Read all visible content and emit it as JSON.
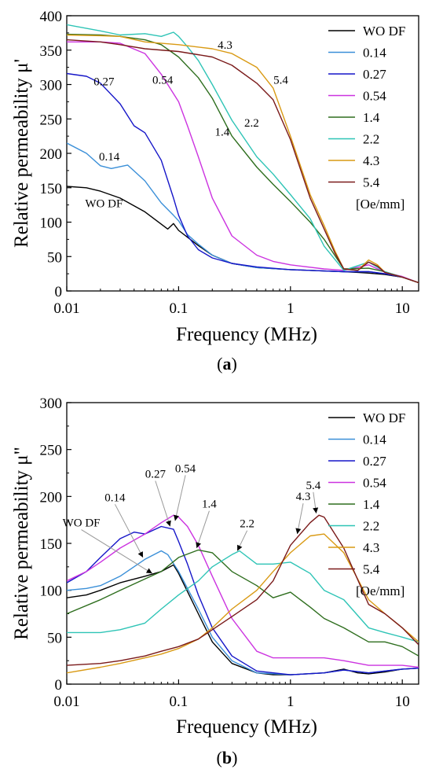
{
  "colors": {
    "WO DF": "#000000",
    "0.14": "#3a8fd8",
    "0.27": "#1515c8",
    "0.54": "#cc33e0",
    "1.4": "#2e6e1e",
    "2.2": "#2ec4b6",
    "4.3": "#d99a14",
    "5.4": "#7a1a1a",
    "annot_line": "#999999"
  },
  "chart_data": [
    {
      "type": "line",
      "panel_label": "a",
      "xlabel": "Frequency (MHz)",
      "ylabel": "Relative permeability μ'",
      "xscale": "log",
      "xlim": [
        0.01,
        14
      ],
      "ylim": [
        0,
        400
      ],
      "xticks": [
        0.01,
        0.1,
        1,
        10
      ],
      "xtick_labels": [
        "0.01",
        "0.1",
        "1",
        "10"
      ],
      "yticks": [
        0,
        50,
        100,
        150,
        200,
        250,
        300,
        350,
        400
      ],
      "legend": {
        "placement": "top-right",
        "unit_note": "[Oe/mm]"
      },
      "series": [
        {
          "name": "WO DF",
          "x": [
            0.01,
            0.015,
            0.02,
            0.03,
            0.05,
            0.07,
            0.08,
            0.09,
            0.1,
            0.15,
            0.2,
            0.3,
            0.5,
            1,
            2,
            3,
            4,
            5,
            7,
            10,
            14
          ],
          "y": [
            152,
            150,
            145,
            135,
            115,
            97,
            90,
            98,
            88,
            66,
            52,
            40,
            34,
            31,
            29,
            28,
            27,
            26,
            24,
            20,
            12
          ]
        },
        {
          "name": "0.14",
          "x": [
            0.01,
            0.015,
            0.02,
            0.025,
            0.035,
            0.05,
            0.07,
            0.09,
            0.1,
            0.12,
            0.15,
            0.2,
            0.3,
            0.5,
            1,
            2,
            3,
            5,
            7,
            10,
            14
          ],
          "y": [
            215,
            200,
            182,
            178,
            183,
            160,
            128,
            110,
            102,
            82,
            68,
            52,
            40,
            34,
            31,
            29,
            28,
            28,
            25,
            20,
            12
          ]
        },
        {
          "name": "0.27",
          "x": [
            0.01,
            0.015,
            0.02,
            0.03,
            0.04,
            0.05,
            0.07,
            0.09,
            0.1,
            0.12,
            0.15,
            0.2,
            0.3,
            0.5,
            1,
            2,
            3,
            5,
            7,
            10,
            14
          ],
          "y": [
            316,
            312,
            302,
            272,
            240,
            230,
            190,
            135,
            110,
            80,
            60,
            48,
            40,
            35,
            31,
            29,
            28,
            28,
            25,
            20,
            12
          ]
        },
        {
          "name": "0.54",
          "x": [
            0.01,
            0.02,
            0.03,
            0.05,
            0.07,
            0.1,
            0.12,
            0.15,
            0.2,
            0.3,
            0.5,
            0.7,
            1,
            2,
            3,
            5,
            7,
            10,
            14
          ],
          "y": [
            362,
            362,
            360,
            345,
            315,
            275,
            240,
            195,
            135,
            80,
            52,
            43,
            38,
            32,
            30,
            38,
            27,
            21,
            12
          ]
        },
        {
          "name": "1.4",
          "x": [
            0.01,
            0.02,
            0.03,
            0.05,
            0.07,
            0.1,
            0.15,
            0.2,
            0.3,
            0.5,
            0.7,
            1,
            1.5,
            2,
            3,
            5,
            7,
            10,
            14
          ],
          "y": [
            373,
            372,
            370,
            365,
            358,
            340,
            310,
            280,
            225,
            180,
            155,
            130,
            100,
            75,
            32,
            33,
            28,
            20,
            12
          ]
        },
        {
          "name": "2.2",
          "x": [
            0.01,
            0.02,
            0.03,
            0.05,
            0.07,
            0.09,
            0.1,
            0.12,
            0.15,
            0.2,
            0.3,
            0.5,
            0.7,
            1,
            1.5,
            2,
            3,
            5,
            7,
            10,
            14
          ],
          "y": [
            387,
            378,
            372,
            374,
            370,
            376,
            370,
            355,
            335,
            300,
            248,
            195,
            170,
            140,
            105,
            65,
            30,
            42,
            28,
            20,
            12
          ]
        },
        {
          "name": "4.3",
          "x": [
            0.01,
            0.02,
            0.03,
            0.05,
            0.1,
            0.2,
            0.3,
            0.5,
            0.7,
            1,
            1.5,
            2,
            2.5,
            3,
            4,
            5,
            6,
            7,
            10,
            14
          ],
          "y": [
            372,
            371,
            370,
            362,
            358,
            352,
            345,
            325,
            295,
            225,
            140,
            95,
            58,
            32,
            30,
            45,
            38,
            27,
            20,
            12
          ]
        },
        {
          "name": "5.4",
          "x": [
            0.01,
            0.02,
            0.03,
            0.05,
            0.1,
            0.2,
            0.3,
            0.5,
            0.7,
            1,
            1.5,
            2,
            2.5,
            3,
            4,
            5,
            6,
            7,
            10,
            14
          ],
          "y": [
            365,
            362,
            358,
            352,
            348,
            340,
            328,
            302,
            278,
            220,
            135,
            90,
            55,
            32,
            30,
            42,
            36,
            27,
            20,
            12
          ]
        }
      ],
      "annotations": [
        {
          "text": "WO DF",
          "x": 0.0215,
          "y": 122,
          "arrow": false
        },
        {
          "text": "0.14",
          "x": 0.024,
          "y": 190,
          "arrow": false
        },
        {
          "text": "0.27",
          "x": 0.0215,
          "y": 299,
          "arrow": false
        },
        {
          "text": "0.54",
          "x": 0.072,
          "y": 301,
          "arrow": false
        },
        {
          "text": "1.4",
          "x": 0.245,
          "y": 226,
          "arrow": false
        },
        {
          "text": "2.2",
          "x": 0.45,
          "y": 239,
          "arrow": false
        },
        {
          "text": "4.3",
          "x": 0.26,
          "y": 352,
          "arrow": false
        },
        {
          "text": "5.4",
          "x": 0.82,
          "y": 301,
          "arrow": false
        }
      ]
    },
    {
      "type": "line",
      "panel_label": "b",
      "xlabel": "Frequency (MHz)",
      "ylabel": "Relative permeability μ\"",
      "xscale": "log",
      "xlim": [
        0.01,
        14
      ],
      "ylim": [
        0,
        300
      ],
      "xticks": [
        0.01,
        0.1,
        1,
        10
      ],
      "xtick_labels": [
        "0.01",
        "0.1",
        "1",
        "10"
      ],
      "yticks": [
        0,
        50,
        100,
        150,
        200,
        250,
        300
      ],
      "legend": {
        "placement": "top-right",
        "unit_note": "[Oe/mm]"
      },
      "series": [
        {
          "name": "WO DF",
          "x": [
            0.01,
            0.015,
            0.02,
            0.03,
            0.05,
            0.07,
            0.09,
            0.1,
            0.15,
            0.2,
            0.3,
            0.5,
            0.7,
            1,
            2,
            3,
            4,
            5,
            7,
            10,
            14
          ],
          "y": [
            92,
            95,
            100,
            108,
            115,
            120,
            127,
            118,
            75,
            45,
            22,
            12,
            10,
            10,
            12,
            16,
            12,
            11,
            13,
            16,
            17
          ]
        },
        {
          "name": "0.14",
          "x": [
            0.01,
            0.015,
            0.02,
            0.03,
            0.05,
            0.07,
            0.08,
            0.1,
            0.15,
            0.2,
            0.3,
            0.5,
            1,
            2,
            3,
            5,
            7,
            10,
            14
          ],
          "y": [
            100,
            102,
            105,
            115,
            133,
            142,
            138,
            120,
            80,
            50,
            25,
            12,
            10,
            12,
            15,
            12,
            14,
            16,
            17
          ]
        },
        {
          "name": "0.27",
          "x": [
            0.01,
            0.015,
            0.02,
            0.03,
            0.04,
            0.05,
            0.07,
            0.09,
            0.1,
            0.12,
            0.15,
            0.2,
            0.3,
            0.5,
            1,
            2,
            3,
            5,
            7,
            10,
            14
          ],
          "y": [
            108,
            120,
            135,
            155,
            162,
            160,
            168,
            165,
            152,
            128,
            95,
            60,
            30,
            14,
            10,
            12,
            15,
            12,
            14,
            16,
            17
          ]
        },
        {
          "name": "0.54",
          "x": [
            0.01,
            0.015,
            0.02,
            0.03,
            0.05,
            0.07,
            0.09,
            0.1,
            0.12,
            0.15,
            0.2,
            0.3,
            0.5,
            0.7,
            1,
            2,
            3,
            5,
            7,
            10,
            14
          ],
          "y": [
            110,
            120,
            130,
            145,
            160,
            172,
            180,
            178,
            168,
            148,
            115,
            70,
            35,
            28,
            28,
            28,
            25,
            20,
            20,
            20,
            18
          ]
        },
        {
          "name": "1.4",
          "x": [
            0.01,
            0.02,
            0.03,
            0.05,
            0.07,
            0.1,
            0.15,
            0.2,
            0.3,
            0.5,
            0.7,
            1,
            1.5,
            2,
            3,
            5,
            7,
            10,
            14
          ],
          "y": [
            75,
            90,
            100,
            112,
            120,
            135,
            143,
            140,
            120,
            105,
            92,
            98,
            82,
            70,
            60,
            45,
            45,
            40,
            30
          ]
        },
        {
          "name": "2.2",
          "x": [
            0.01,
            0.02,
            0.03,
            0.05,
            0.07,
            0.1,
            0.15,
            0.2,
            0.3,
            0.35,
            0.5,
            0.7,
            1,
            1.5,
            2,
            3,
            5,
            7,
            10,
            14
          ],
          "y": [
            55,
            55,
            58,
            65,
            80,
            95,
            110,
            125,
            138,
            142,
            128,
            128,
            130,
            118,
            100,
            90,
            60,
            55,
            50,
            45
          ]
        },
        {
          "name": "4.3",
          "x": [
            0.01,
            0.02,
            0.03,
            0.05,
            0.07,
            0.1,
            0.15,
            0.2,
            0.3,
            0.5,
            0.7,
            1,
            1.5,
            2,
            3,
            5,
            7,
            10,
            14
          ],
          "y": [
            12,
            18,
            22,
            28,
            32,
            38,
            48,
            60,
            80,
            100,
            120,
            140,
            158,
            160,
            140,
            90,
            75,
            60,
            45
          ]
        },
        {
          "name": "5.4",
          "x": [
            0.01,
            0.02,
            0.03,
            0.05,
            0.07,
            0.1,
            0.15,
            0.2,
            0.3,
            0.5,
            0.7,
            1,
            1.5,
            1.8,
            2,
            3,
            5,
            7,
            10,
            14
          ],
          "y": [
            20,
            22,
            25,
            30,
            35,
            40,
            48,
            58,
            72,
            90,
            110,
            148,
            172,
            180,
            178,
            145,
            85,
            75,
            60,
            42
          ]
        }
      ],
      "annotations": [
        {
          "text": "WO DF",
          "x": 0.0135,
          "y": 168,
          "arrow": true,
          "target_x": 0.058,
          "target_y": 118
        },
        {
          "text": "0.14",
          "x": 0.027,
          "y": 195,
          "arrow": true,
          "target_x": 0.048,
          "target_y": 135
        },
        {
          "text": "0.27",
          "x": 0.062,
          "y": 220,
          "arrow": true,
          "target_x": 0.084,
          "target_y": 168
        },
        {
          "text": "0.54",
          "x": 0.115,
          "y": 226,
          "arrow": true,
          "target_x": 0.093,
          "target_y": 174
        },
        {
          "text": "1.4",
          "x": 0.188,
          "y": 188,
          "arrow": true,
          "target_x": 0.145,
          "target_y": 145
        },
        {
          "text": "2.2",
          "x": 0.41,
          "y": 167,
          "arrow": true,
          "target_x": 0.335,
          "target_y": 142
        },
        {
          "text": "4.3",
          "x": 1.3,
          "y": 196,
          "arrow": true,
          "target_x": 1.15,
          "target_y": 160
        },
        {
          "text": "5.4",
          "x": 1.6,
          "y": 208,
          "arrow": true,
          "target_x": 1.7,
          "target_y": 182
        }
      ]
    }
  ]
}
